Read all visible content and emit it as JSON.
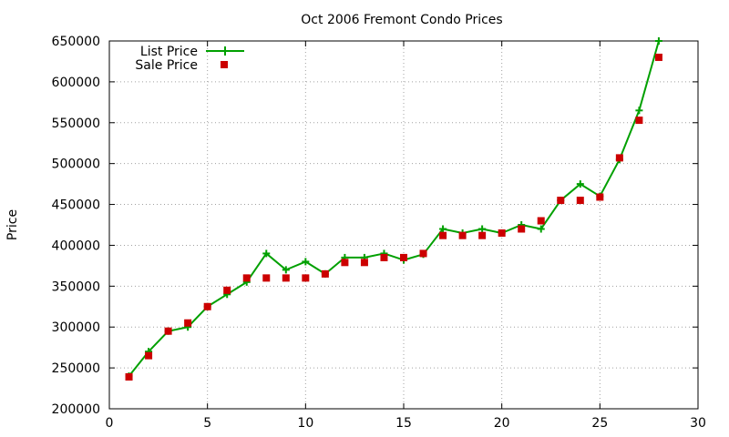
{
  "chart_data": {
    "type": "line",
    "title": "Oct 2006 Fremont Condo Prices",
    "xlabel": "",
    "ylabel": "Price",
    "xlim": [
      0,
      30
    ],
    "ylim": [
      200000,
      650000
    ],
    "xticks": [
      0,
      5,
      10,
      15,
      20,
      25,
      30
    ],
    "yticks": [
      200000,
      250000,
      300000,
      350000,
      400000,
      450000,
      500000,
      550000,
      600000,
      650000
    ],
    "grid": true,
    "legend_position": "top-left",
    "series": [
      {
        "name": "List Price",
        "style": "line with + markers",
        "color": "#00a000",
        "x": [
          1,
          2,
          3,
          4,
          5,
          6,
          7,
          8,
          9,
          10,
          11,
          12,
          13,
          14,
          15,
          16,
          17,
          18,
          19,
          20,
          21,
          22,
          23,
          24,
          25,
          26,
          27,
          28
        ],
        "y": [
          240000,
          270000,
          295000,
          300000,
          325000,
          340000,
          355000,
          390000,
          370000,
          380000,
          365000,
          385000,
          385000,
          390000,
          382000,
          389000,
          420000,
          415000,
          420000,
          415000,
          425000,
          420000,
          455000,
          475000,
          460000,
          505000,
          565000,
          650000
        ]
      },
      {
        "name": "Sale Price",
        "style": "square markers",
        "color": "#cc0000",
        "x": [
          1,
          2,
          3,
          4,
          5,
          6,
          7,
          8,
          9,
          10,
          11,
          12,
          13,
          14,
          15,
          16,
          17,
          18,
          19,
          20,
          21,
          22,
          23,
          24,
          25,
          26,
          27,
          28
        ],
        "y": [
          239000,
          265000,
          295000,
          305000,
          325000,
          345000,
          360000,
          360000,
          360000,
          360000,
          365000,
          379000,
          379000,
          385000,
          385000,
          390000,
          412000,
          412000,
          412000,
          415000,
          420000,
          430000,
          455000,
          455000,
          459000,
          507000,
          553000,
          630000
        ]
      }
    ]
  }
}
